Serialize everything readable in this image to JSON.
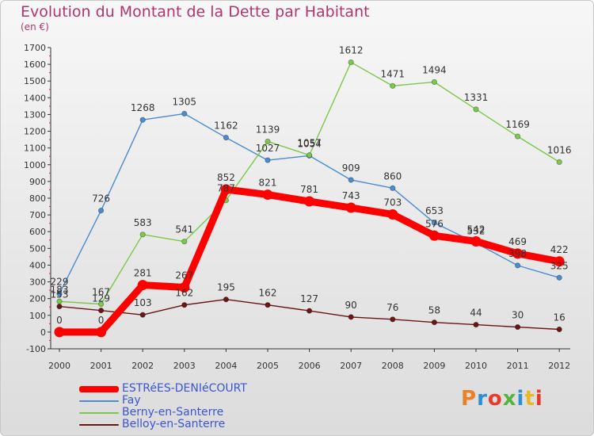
{
  "title": "Evolution du Montant de la Dette par Habitant",
  "subtitle": "(en €)",
  "logo": {
    "text": "Proxiti",
    "colors": [
      "#e8822a",
      "#2a8fd4",
      "#e83a2a",
      "#55b43c",
      "#2a8fd4",
      "#e8b82a",
      "#e83a2a"
    ]
  },
  "chart_data": {
    "type": "line",
    "title": "Evolution du Montant de la Dette par Habitant",
    "subtitle": "(en €)",
    "xlabel": "",
    "ylabel": "",
    "x": [
      "2000",
      "2001",
      "2002",
      "2003",
      "2004",
      "2005",
      "2006",
      "2007",
      "2008",
      "2009",
      "2010",
      "2011",
      "2012"
    ],
    "ylim": [
      -100,
      1700
    ],
    "yticks": [
      -100,
      0,
      100,
      200,
      300,
      400,
      500,
      600,
      700,
      800,
      900,
      1000,
      1100,
      1200,
      1300,
      1400,
      1500,
      1600,
      1700
    ],
    "grid": false,
    "legend_position": "bottom-left",
    "series": [
      {
        "name": "ESTRéES-DENIéCOURT",
        "color": "#ff0000",
        "values": [
          0,
          0,
          281,
          267,
          852,
          821,
          781,
          743,
          703,
          576,
          542,
          469,
          422
        ],
        "labels": [
          "0",
          "0",
          "281",
          "267",
          "852",
          "821",
          "781",
          "743",
          "703",
          "576",
          "542",
          "469",
          "422"
        ]
      },
      {
        "name": "Fay",
        "color": "#4a8ccf",
        "values": [
          229,
          726,
          1268,
          1305,
          1162,
          1027,
          1054,
          909,
          860,
          653,
          532,
          398,
          325
        ],
        "labels": [
          "229",
          "726",
          "1268",
          "1305",
          "1162",
          "1027",
          "1054",
          "909",
          "860",
          "653",
          "532",
          "398",
          "325"
        ]
      },
      {
        "name": "Berny-en-Santerre",
        "color": "#7ac94a",
        "values": [
          183,
          167,
          583,
          541,
          787,
          1139,
          1057,
          1612,
          1471,
          1494,
          1331,
          1169,
          1016
        ],
        "labels": [
          "183",
          "167",
          "583",
          "541",
          "787",
          "1139",
          "1057",
          "1612",
          "1471",
          "1494",
          "1331",
          "1169",
          "1016"
        ]
      },
      {
        "name": "Belloy-en-Santerre",
        "color": "#6b1515",
        "values": [
          153,
          129,
          103,
          162,
          195,
          162,
          127,
          90,
          76,
          58,
          44,
          30,
          16
        ],
        "labels": [
          "153",
          "129",
          "103",
          "162",
          "195",
          "162",
          "127",
          "90",
          "76",
          "58",
          "44",
          "30",
          "16"
        ]
      }
    ]
  }
}
